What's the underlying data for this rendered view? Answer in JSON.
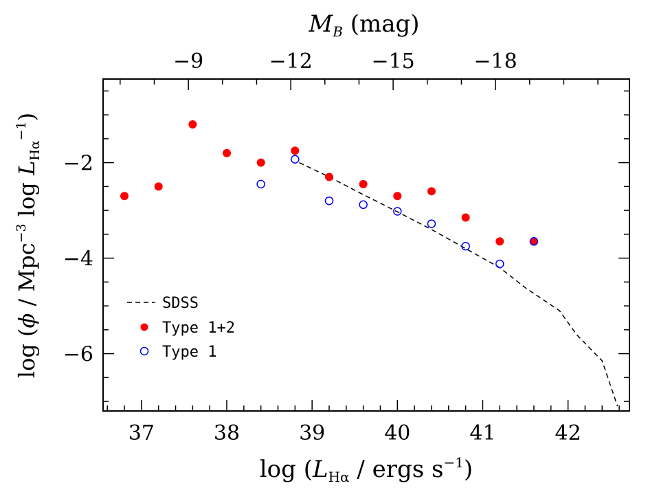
{
  "chart_data": {
    "type": "scatter",
    "title": "",
    "xlabel": {
      "prefix": "log (",
      "symbol": "L",
      "sub": "Hα",
      "suffix": " / ergs s",
      "sup": "−1",
      "close": ")"
    },
    "ylabel": {
      "prefix": "log (",
      "phi": "ϕ",
      "mid": " / Mpc",
      "sup1": "−3",
      "mid2": " log ",
      "symbol": "L",
      "sub": "Hα",
      "sup2": "−1",
      "close": ")"
    },
    "toplabel": {
      "symbol": "M",
      "sub": "B",
      "suffix": " (mag)"
    },
    "xlim": [
      36.55,
      42.72
    ],
    "ylim": [
      -7.2,
      -0.25
    ],
    "xticks": [
      "37",
      "38",
      "39",
      "40",
      "41",
      "42"
    ],
    "yticks": [
      "-2",
      "-4",
      "-6"
    ],
    "yticks_display": [
      "−2",
      "−4",
      "−6"
    ],
    "top_ticks": [
      {
        "value": -9,
        "label": "−9",
        "x": 37.55
      },
      {
        "value": -12,
        "label": "−12",
        "x": 38.75
      },
      {
        "value": -15,
        "label": "−15",
        "x": 39.95
      },
      {
        "value": -18,
        "label": "−18",
        "x": 41.15
      }
    ],
    "series": [
      {
        "name": "SDSS",
        "style": "dashed-line",
        "color": "#000000",
        "x": [
          38.85,
          39.2,
          39.6,
          40.0,
          40.4,
          40.8,
          41.2,
          41.5,
          41.9,
          42.1,
          42.4,
          42.58
        ],
        "y": [
          -2.0,
          -2.3,
          -2.67,
          -3.03,
          -3.4,
          -3.8,
          -4.2,
          -4.62,
          -5.1,
          -5.6,
          -6.15,
          -7.1
        ]
      },
      {
        "name": "Type 1+2",
        "style": "filled-circle",
        "color": "#ff0000",
        "x": [
          36.8,
          37.2,
          37.6,
          38.0,
          38.4,
          38.8,
          39.2,
          39.6,
          40.0,
          40.4,
          40.8,
          41.2,
          41.6
        ],
        "y": [
          -2.7,
          -2.5,
          -1.2,
          -1.8,
          -2.0,
          -1.75,
          -2.3,
          -2.45,
          -2.7,
          -2.6,
          -3.15,
          -3.65,
          -3.65
        ]
      },
      {
        "name": "Type 1",
        "style": "open-circle",
        "color": "#0000ff",
        "x": [
          38.4,
          38.8,
          39.2,
          39.6,
          40.0,
          40.4,
          40.8,
          41.2,
          41.6
        ],
        "y": [
          -2.45,
          -1.93,
          -2.8,
          -2.88,
          -3.02,
          -3.28,
          -3.75,
          -4.12,
          -3.65
        ]
      }
    ],
    "legend": {
      "position": "bottom-left",
      "entries": [
        "SDSS",
        "Type 1+2",
        "Type 1"
      ]
    }
  }
}
